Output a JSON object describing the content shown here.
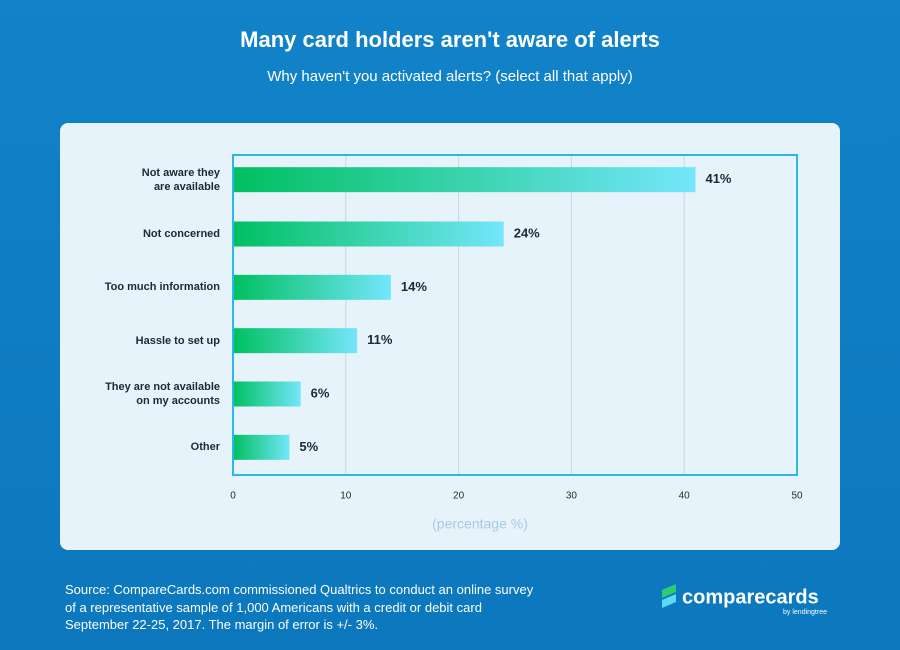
{
  "chart_data": {
    "type": "bar",
    "orientation": "horizontal",
    "title": "Many card holders aren't aware of alerts",
    "subtitle": "Why haven't you activated alerts? (select all that apply)",
    "categories": [
      "Not aware they\nare available",
      "Not concerned",
      "Too much information",
      "Hassle to set up",
      "They are not available\non my accounts",
      "Other"
    ],
    "values": [
      41,
      24,
      14,
      11,
      6,
      5
    ],
    "value_labels": [
      "41%",
      "24%",
      "14%",
      "11%",
      "6%",
      "5%"
    ],
    "color": [
      "#00c060",
      "#74e6fb"
    ],
    "xlim": [
      0,
      50
    ],
    "xticks": [
      0,
      10,
      20,
      30,
      40,
      50
    ],
    "grid": true,
    "xlabel": "(percentage %)"
  },
  "source": "Source: CompareCards.com commissioned Qualtrics to conduct an online survey\nof a representative sample of 1,000 Americans with a credit or debit card\nSeptember 22-25, 2017. The margin of error is +/- 3%.",
  "brand": {
    "name": "comparecards",
    "byline": "by lendingtree"
  }
}
